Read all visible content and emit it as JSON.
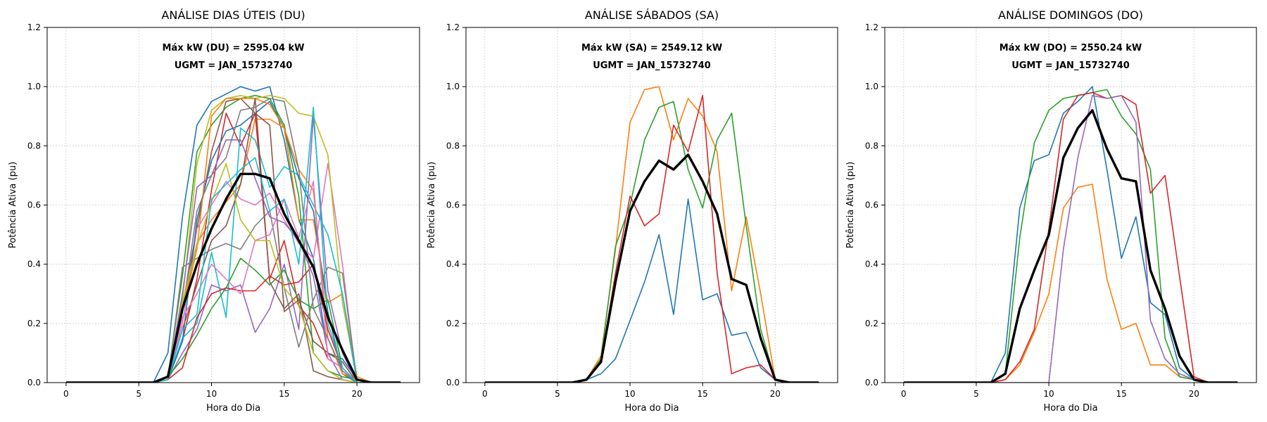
{
  "palette": [
    "#1f77b4",
    "#ff7f0e",
    "#2ca02c",
    "#d62728",
    "#9467bd",
    "#8c564b",
    "#e377c2",
    "#7f7f7f",
    "#bcbd22",
    "#17becf"
  ],
  "mean_color": "#000000",
  "chart_data": [
    {
      "type": "line",
      "title": "ANÁLISE DIAS ÚTEIS (DU)",
      "annotation": [
        "Máx kW (DU) = 2595.04 kW",
        "UGMT = JAN_15732740"
      ],
      "xlabel": "Hora do Dia",
      "ylabel": "Potência Ativa (pu)",
      "xlim": [
        -1.3,
        24.3
      ],
      "ylim": [
        0,
        1.2
      ],
      "xticks": [
        0,
        5,
        10,
        15,
        20
      ],
      "yticks": [
        0.0,
        0.2,
        0.4,
        0.6,
        0.8,
        1.0,
        1.2
      ],
      "grid": true,
      "x": [
        0,
        1,
        2,
        3,
        4,
        5,
        6,
        7,
        8,
        9,
        10,
        11,
        12,
        13,
        14,
        15,
        16,
        17,
        18,
        19,
        20,
        21,
        22,
        23
      ],
      "series": [
        {
          "values": [
            0,
            0,
            0,
            0,
            0,
            0,
            0,
            0.1,
            0.56,
            0.87,
            0.95,
            0.975,
            1.0,
            0.985,
            1.0,
            0.82,
            0.55,
            0.42,
            0.1,
            0.08,
            0.01,
            0,
            0,
            0
          ]
        },
        {
          "values": [
            0,
            0,
            0,
            0,
            0,
            0,
            0,
            0.02,
            0.25,
            0.47,
            0.55,
            0.61,
            0.67,
            0.89,
            0.89,
            0.86,
            0.55,
            0.55,
            0.27,
            0.3,
            0.02,
            0,
            0,
            0
          ]
        },
        {
          "values": [
            0,
            0,
            0,
            0,
            0,
            0,
            0,
            0.02,
            0.36,
            0.78,
            0.87,
            0.93,
            0.96,
            0.97,
            0.96,
            0.87,
            0.63,
            0.1,
            0.04,
            0.02,
            0.01,
            0,
            0,
            0
          ]
        },
        {
          "values": [
            0,
            0,
            0,
            0,
            0,
            0,
            0,
            0.01,
            0.14,
            0.35,
            0.65,
            0.91,
            0.8,
            0.91,
            0.35,
            0.48,
            0.26,
            0.2,
            0.08,
            0.05,
            0,
            0,
            0,
            0
          ]
        },
        {
          "values": [
            0,
            0,
            0,
            0,
            0,
            0,
            0,
            0.01,
            0.1,
            0.18,
            0.33,
            0.31,
            0.33,
            0.17,
            0.25,
            0.4,
            0.18,
            0.9,
            0.31,
            0.1,
            0,
            0,
            0,
            0
          ]
        },
        {
          "values": [
            0,
            0,
            0,
            0,
            0,
            0,
            0,
            0.02,
            0.26,
            0.52,
            0.78,
            0.95,
            0.96,
            0.91,
            0.87,
            0.24,
            0.28,
            0.14,
            0.1,
            0.07,
            0,
            0,
            0,
            0
          ]
        },
        {
          "values": [
            0,
            0,
            0,
            0,
            0,
            0,
            0,
            0.01,
            0.2,
            0.52,
            0.6,
            0.68,
            0.62,
            0.6,
            0.64,
            0.55,
            0.47,
            0.42,
            0.74,
            0.4,
            0,
            0,
            0,
            0
          ]
        },
        {
          "values": [
            0,
            0,
            0,
            0,
            0,
            0,
            0,
            0.01,
            0.39,
            0.42,
            0.45,
            0.47,
            0.45,
            0.53,
            0.58,
            0.32,
            0.12,
            0.28,
            0.39,
            0.37,
            0.01,
            0,
            0,
            0
          ]
        },
        {
          "values": [
            0,
            0,
            0,
            0,
            0,
            0,
            0,
            0.02,
            0.28,
            0.74,
            0.92,
            0.96,
            0.97,
            0.96,
            0.97,
            0.96,
            0.91,
            0.9,
            0.77,
            0.27,
            0.01,
            0,
            0,
            0
          ]
        },
        {
          "values": [
            0,
            0,
            0,
            0,
            0,
            0,
            0,
            0.01,
            0.15,
            0.2,
            0.44,
            0.22,
            0.86,
            0.82,
            0.66,
            0.73,
            0.7,
            0.6,
            0.5,
            0.3,
            0,
            0,
            0,
            0
          ]
        },
        {
          "values": [
            0,
            0,
            0,
            0,
            0,
            0,
            0,
            0.01,
            0.14,
            0.55,
            0.75,
            0.85,
            0.87,
            0.91,
            0.95,
            0.86,
            0.69,
            0.58,
            0.24,
            0.03,
            0,
            0,
            0,
            0
          ]
        },
        {
          "values": [
            0,
            0,
            0,
            0,
            0,
            0,
            0,
            0.01,
            0.24,
            0.45,
            0.9,
            0.96,
            0.96,
            0.96,
            0.94,
            0.86,
            0.72,
            0.65,
            0.15,
            0.03,
            0.01,
            0,
            0,
            0
          ]
        },
        {
          "values": [
            0,
            0,
            0,
            0,
            0,
            0,
            0,
            0.02,
            0.08,
            0.16,
            0.25,
            0.32,
            0.42,
            0.38,
            0.33,
            0.38,
            0.28,
            0.25,
            0.28,
            0.05,
            0,
            0,
            0,
            0
          ]
        },
        {
          "values": [
            0,
            0,
            0,
            0,
            0,
            0,
            0,
            0.01,
            0.05,
            0.22,
            0.3,
            0.32,
            0.31,
            0.31,
            0.36,
            0.33,
            0.34,
            0.4,
            0.18,
            0.05,
            0,
            0,
            0,
            0
          ]
        },
        {
          "values": [
            0,
            0,
            0,
            0,
            0,
            0,
            0,
            0.01,
            0.3,
            0.66,
            0.7,
            0.82,
            0.82,
            0.69,
            0.56,
            0.54,
            0.48,
            0.36,
            0.1,
            0.01,
            0,
            0,
            0,
            0
          ]
        },
        {
          "values": [
            0,
            0,
            0,
            0,
            0,
            0,
            0,
            0.01,
            0.18,
            0.33,
            0.48,
            0.53,
            0.67,
            0.96,
            0.34,
            0.25,
            0.3,
            0.04,
            0.02,
            0.01,
            0,
            0,
            0,
            0
          ]
        },
        {
          "values": [
            0,
            0,
            0,
            0,
            0,
            0,
            0,
            0.01,
            0.22,
            0.3,
            0.4,
            0.35,
            0.3,
            0.48,
            0.5,
            0.62,
            0.49,
            0.68,
            0.08,
            0.05,
            0,
            0,
            0,
            0
          ]
        },
        {
          "values": [
            0,
            0,
            0,
            0,
            0,
            0,
            0,
            0.01,
            0.24,
            0.58,
            0.7,
            0.76,
            0.92,
            0.93,
            0.96,
            0.95,
            0.72,
            0.25,
            0.15,
            0.04,
            0,
            0,
            0,
            0
          ]
        },
        {
          "values": [
            0,
            0,
            0,
            0,
            0,
            0,
            0,
            0.01,
            0.27,
            0.46,
            0.61,
            0.74,
            0.55,
            0.48,
            0.48,
            0.32,
            0.26,
            0.1,
            0.04,
            0.01,
            0,
            0,
            0,
            0
          ]
        },
        {
          "values": [
            0,
            0,
            0,
            0,
            0,
            0,
            0,
            0.01,
            0.18,
            0.23,
            0.62,
            0.67,
            0.72,
            0.76,
            0.58,
            0.62,
            0.4,
            0.93,
            0.2,
            0.05,
            0,
            0,
            0,
            0
          ]
        }
      ],
      "mean": [
        0,
        0,
        0,
        0,
        0,
        0,
        0,
        0.02,
        0.25,
        0.4,
        0.52,
        0.62,
        0.705,
        0.705,
        0.69,
        0.57,
        0.48,
        0.39,
        0.22,
        0.11,
        0.01,
        0,
        0,
        0
      ]
    },
    {
      "type": "line",
      "title": "ANÁLISE SÁBADOS (SA)",
      "annotation": [
        "Máx kW (SA) = 2549.12 kW",
        "UGMT = JAN_15732740"
      ],
      "xlabel": "Hora do Dia",
      "ylabel": "Potência Ativa (pu)",
      "xlim": [
        -1.3,
        24.3
      ],
      "ylim": [
        0,
        1.2
      ],
      "xticks": [
        0,
        5,
        10,
        15,
        20
      ],
      "yticks": [
        0.0,
        0.2,
        0.4,
        0.6,
        0.8,
        1.0,
        1.2
      ],
      "grid": true,
      "x": [
        0,
        1,
        2,
        3,
        4,
        5,
        6,
        7,
        8,
        9,
        10,
        11,
        12,
        13,
        14,
        15,
        16,
        17,
        18,
        19,
        20,
        21,
        22,
        23
      ],
      "series": [
        {
          "values": [
            0,
            0,
            0,
            0,
            0,
            0,
            0,
            0.01,
            0.03,
            0.08,
            0.21,
            0.34,
            0.5,
            0.23,
            0.62,
            0.28,
            0.3,
            0.16,
            0.17,
            0.05,
            0.01,
            0,
            0,
            0
          ]
        },
        {
          "values": [
            0,
            0,
            0,
            0,
            0,
            0,
            0,
            0.01,
            0.09,
            0.45,
            0.88,
            0.99,
            1.0,
            0.82,
            0.96,
            0.9,
            0.78,
            0.31,
            0.56,
            0.3,
            0.01,
            0,
            0,
            0
          ]
        },
        {
          "values": [
            0,
            0,
            0,
            0,
            0,
            0,
            0,
            0.01,
            0.08,
            0.46,
            0.6,
            0.82,
            0.93,
            0.95,
            0.72,
            0.59,
            0.82,
            0.91,
            0.53,
            0.18,
            0.01,
            0,
            0,
            0
          ]
        },
        {
          "values": [
            0,
            0,
            0,
            0,
            0,
            0,
            0,
            0.01,
            0.07,
            0.37,
            0.63,
            0.53,
            0.57,
            0.87,
            0.78,
            0.97,
            0.37,
            0.03,
            0.05,
            0.06,
            0.01,
            0,
            0,
            0
          ]
        }
      ],
      "mean": [
        0,
        0,
        0,
        0,
        0,
        0,
        0,
        0.01,
        0.07,
        0.34,
        0.58,
        0.68,
        0.75,
        0.72,
        0.77,
        0.68,
        0.57,
        0.35,
        0.33,
        0.15,
        0.01,
        0,
        0,
        0
      ]
    },
    {
      "type": "line",
      "title": "ANÁLISE DOMINGOS (DO)",
      "annotation": [
        "Máx kW (DO) = 2550.24 kW",
        "UGMT = JAN_15732740"
      ],
      "xlabel": "Hora do Dia",
      "ylabel": "Potência Ativa (pu)",
      "xlim": [
        -1.3,
        24.3
      ],
      "ylim": [
        0,
        1.2
      ],
      "xticks": [
        0,
        5,
        10,
        15,
        20
      ],
      "yticks": [
        0.0,
        0.2,
        0.4,
        0.6,
        0.8,
        1.0,
        1.2
      ],
      "grid": true,
      "x": [
        0,
        1,
        2,
        3,
        4,
        5,
        6,
        7,
        8,
        9,
        10,
        11,
        12,
        13,
        14,
        15,
        16,
        17,
        18,
        19,
        20,
        21,
        22,
        23
      ],
      "series": [
        {
          "values": [
            0,
            0,
            0,
            0,
            0,
            0,
            0,
            0.1,
            0.59,
            0.75,
            0.77,
            0.91,
            0.95,
            1.0,
            0.72,
            0.42,
            0.56,
            0.27,
            0.23,
            0.05,
            0.01,
            0,
            0,
            0
          ]
        },
        {
          "values": [
            0,
            0,
            0,
            0,
            0,
            0,
            0,
            0.01,
            0.06,
            0.17,
            0.3,
            0.59,
            0.66,
            0.67,
            0.35,
            0.18,
            0.2,
            0.06,
            0.06,
            0.02,
            0.01,
            0,
            0,
            0
          ]
        },
        {
          "values": [
            0,
            0,
            0,
            0,
            0,
            0,
            0,
            0.03,
            0.49,
            0.81,
            0.92,
            0.96,
            0.97,
            0.98,
            0.99,
            0.9,
            0.84,
            0.72,
            0.15,
            0.02,
            0.01,
            0,
            0,
            0
          ]
        },
        {
          "values": [
            0,
            0,
            0,
            0,
            0,
            0,
            0,
            0.01,
            0.07,
            0.18,
            0.52,
            0.89,
            0.97,
            0.98,
            0.96,
            0.97,
            0.94,
            0.64,
            0.7,
            0.36,
            0.02,
            0,
            0,
            0
          ]
        },
        {
          "values": [
            0,
            0,
            0,
            0,
            0,
            0,
            0,
            0,
            0,
            0,
            0,
            0.45,
            0.76,
            0.97,
            0.96,
            0.97,
            0.88,
            0.21,
            0.08,
            0.03,
            0.01,
            0,
            0,
            0
          ]
        }
      ],
      "mean": [
        0,
        0,
        0,
        0,
        0,
        0,
        0,
        0.03,
        0.25,
        0.38,
        0.5,
        0.76,
        0.86,
        0.92,
        0.79,
        0.69,
        0.68,
        0.38,
        0.25,
        0.09,
        0.01,
        0,
        0,
        0
      ]
    }
  ]
}
